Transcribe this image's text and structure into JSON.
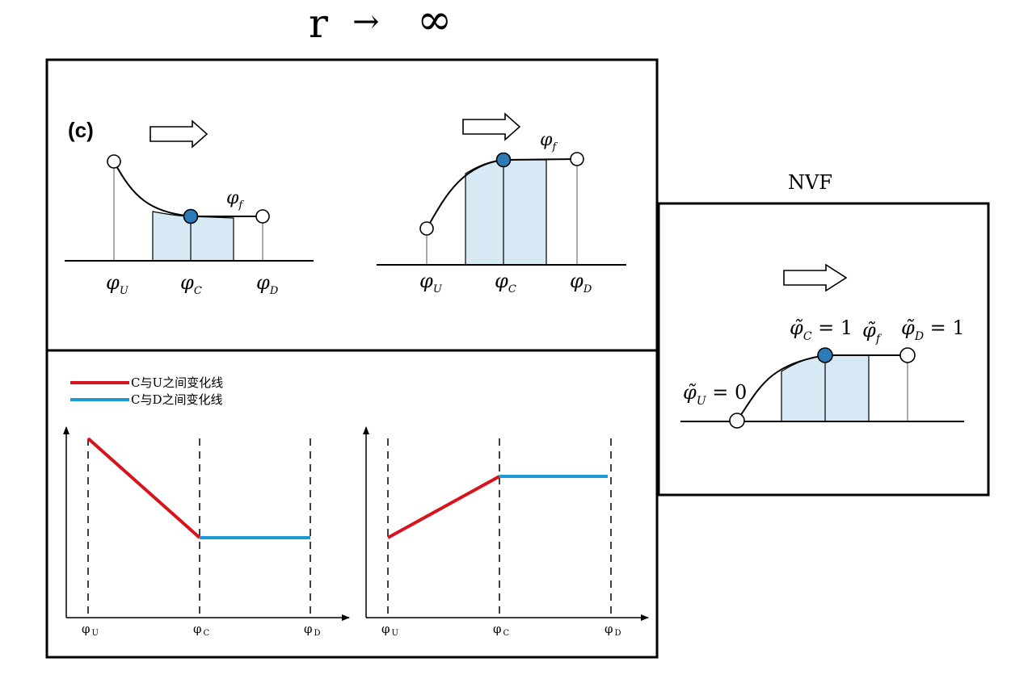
{
  "header": {
    "r": "r",
    "arrow": "→",
    "infinity": "∞"
  },
  "panel_c": {
    "label": "(c)",
    "left": {
      "phi_f": "φ",
      "phi_f_sub": "f",
      "xlabels": [
        {
          "main": "φ",
          "sub": "U"
        },
        {
          "main": "φ",
          "sub": "C"
        },
        {
          "main": "φ",
          "sub": "D"
        }
      ]
    },
    "right": {
      "phi_f": "φ",
      "phi_f_sub": "f",
      "xlabels": [
        {
          "main": "φ",
          "sub": "U"
        },
        {
          "main": "φ",
          "sub": "C"
        },
        {
          "main": "φ",
          "sub": "D"
        }
      ]
    }
  },
  "nvf": {
    "title": "NVF",
    "labels": {
      "c": {
        "main": "φ̃",
        "sub": "C",
        "rest": " = 1"
      },
      "f": {
        "main": "φ̃",
        "sub": "f"
      },
      "d": {
        "main": "φ̃",
        "sub": "D",
        "rest": " = 1"
      },
      "u": {
        "main": "φ̃",
        "sub": "U",
        "rest": " = 0"
      }
    }
  },
  "legend": {
    "items": [
      {
        "label": "C与U之间变化线",
        "color": "#d7141e"
      },
      {
        "label": "C与D之间变化线",
        "color": "#1e9bd7"
      }
    ]
  },
  "graphs": {
    "xticks": [
      {
        "main": "φ",
        "sub": "U"
      },
      {
        "main": "φ",
        "sub": "C"
      },
      {
        "main": "φ",
        "sub": "D"
      }
    ],
    "left": {
      "u_segment": [
        [
          "U",
          1.0
        ],
        [
          "C",
          0.34
        ]
      ],
      "d_segment": [
        [
          "C",
          0.34
        ],
        [
          "D",
          0.34
        ]
      ]
    },
    "right": {
      "u_segment": [
        [
          "U",
          0.34
        ],
        [
          "C",
          0.74
        ]
      ],
      "d_segment": [
        [
          "C",
          0.74
        ],
        [
          "D",
          0.74
        ]
      ]
    }
  },
  "colors": {
    "fill": "#d6e9f4",
    "node": "#2b7bb9",
    "red": "#d7141e",
    "blue": "#1e9bd7"
  }
}
